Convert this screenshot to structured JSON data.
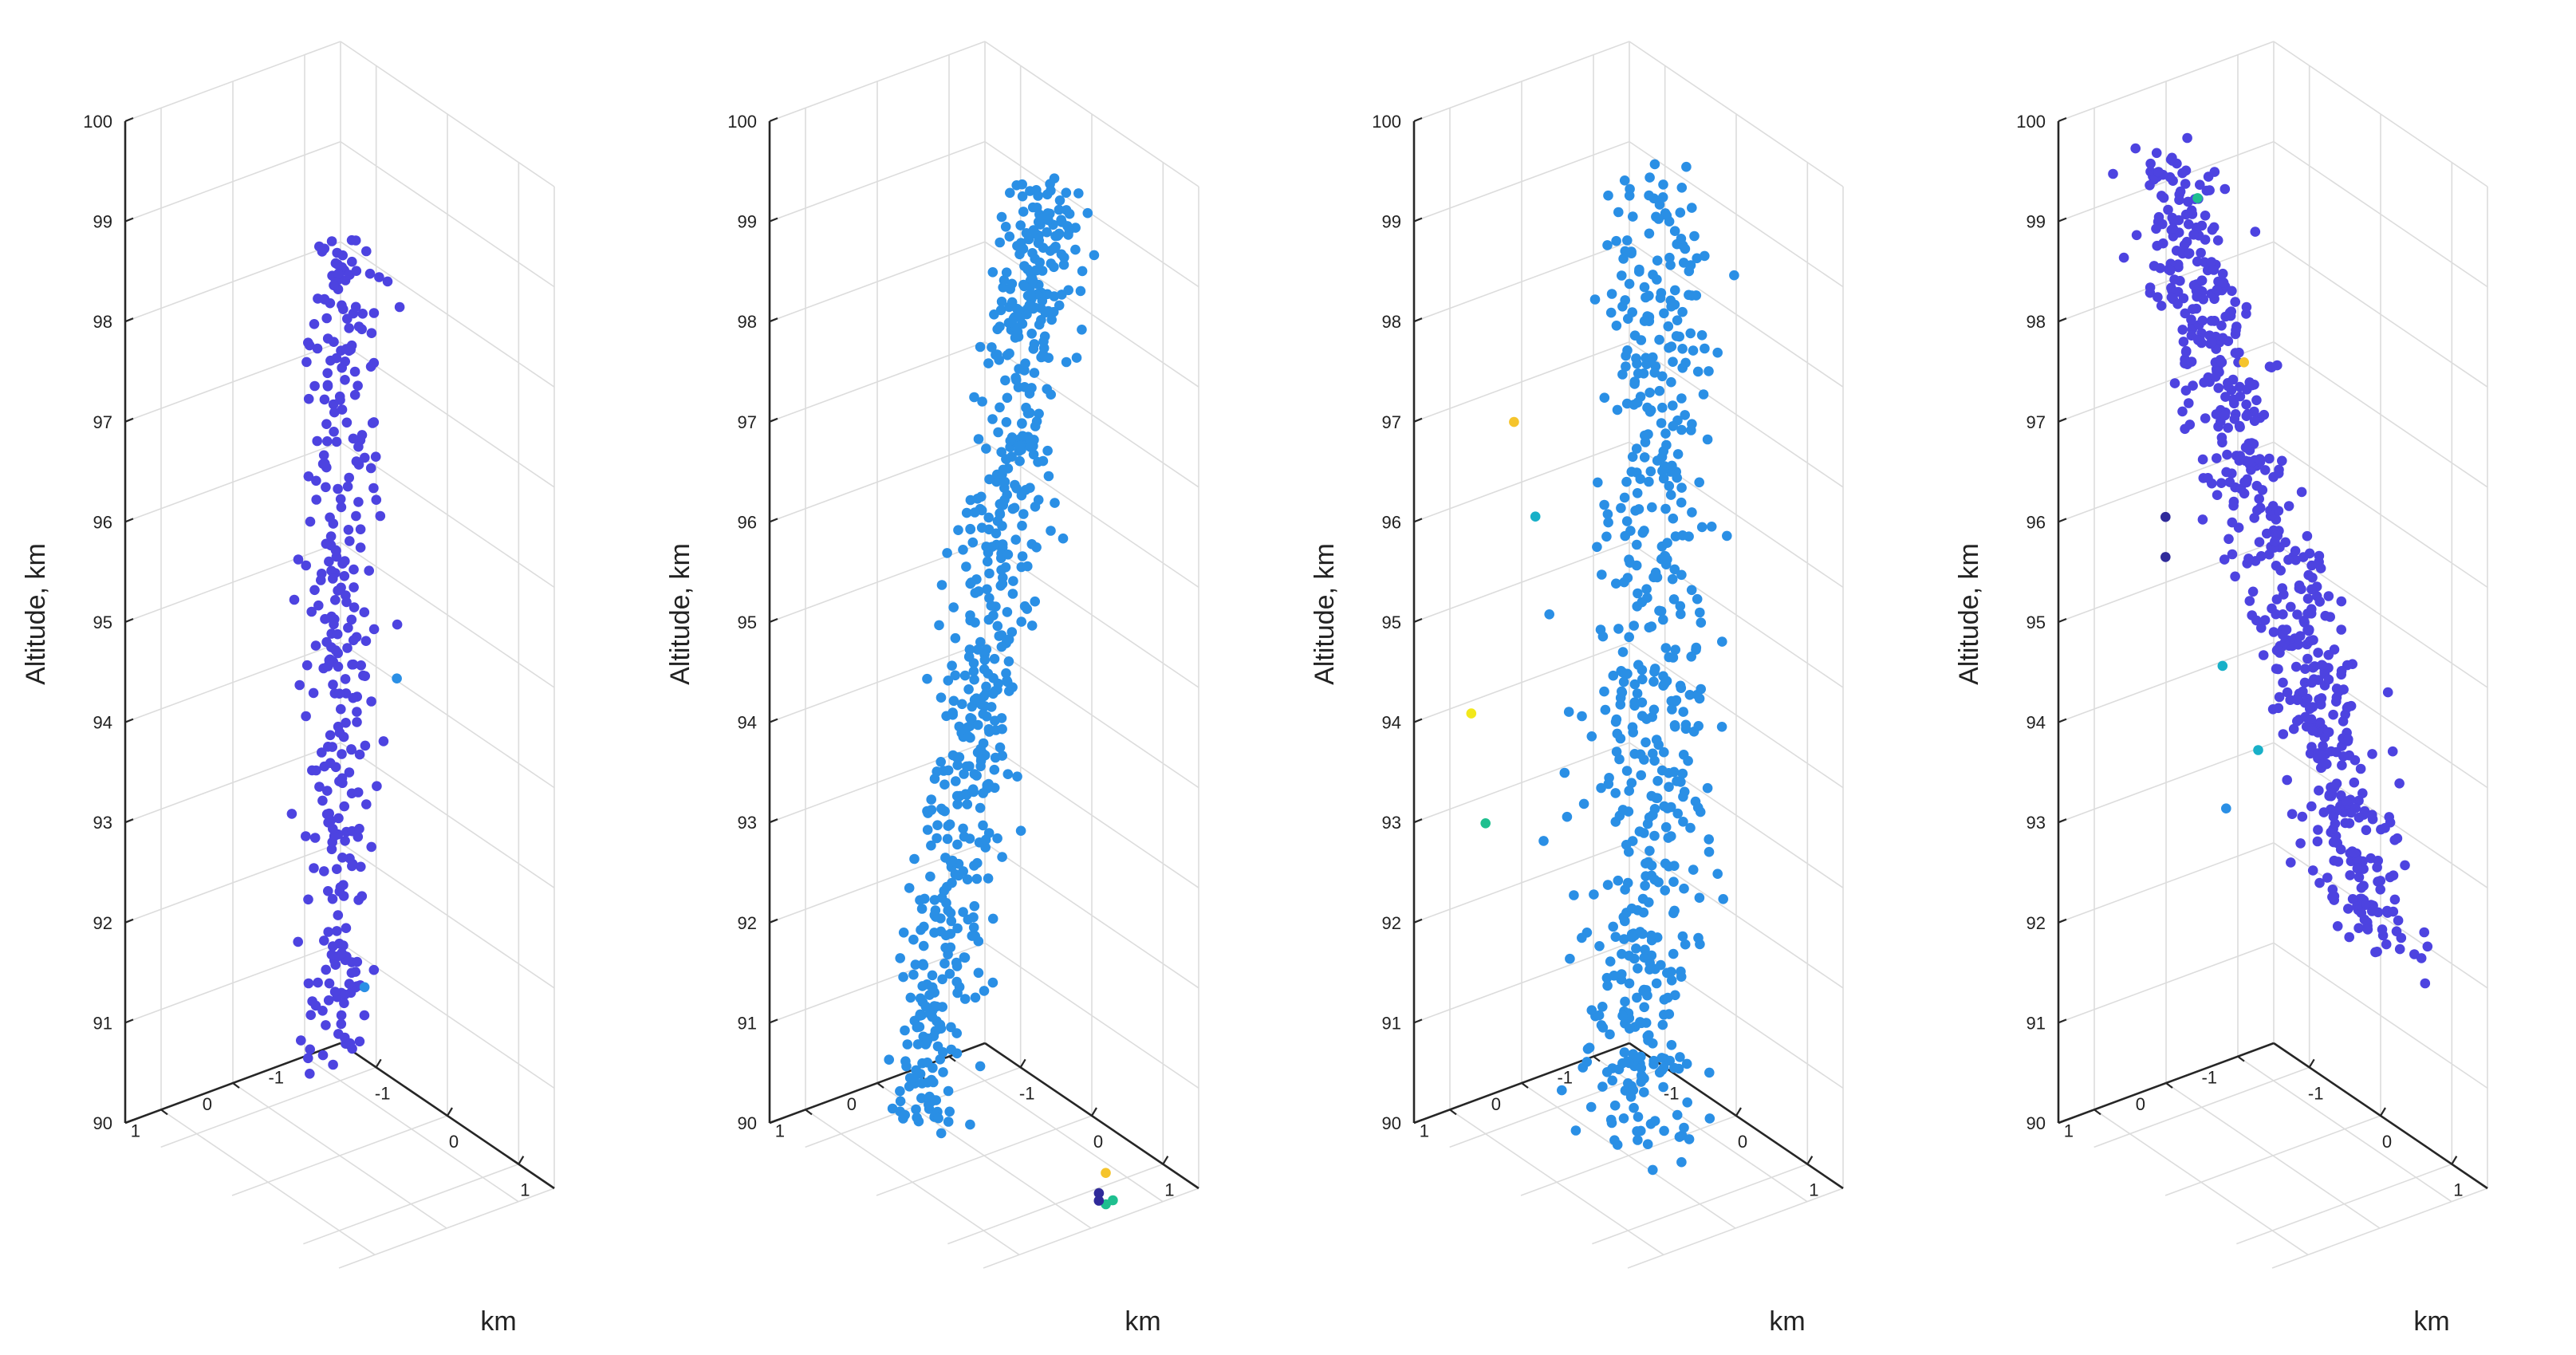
{
  "chart_data": [
    {
      "type": "scatter3d",
      "zlabel": "Altitude, km",
      "xlabel": "km",
      "zlim": [
        90,
        100
      ],
      "zticks": [
        90,
        91,
        92,
        93,
        94,
        95,
        96,
        97,
        98,
        99,
        100
      ],
      "ylim": [
        -1.5,
        1.5
      ],
      "yticks": [
        -1,
        0,
        1
      ],
      "xlim": [
        -1.5,
        1.5
      ],
      "xticks": [
        -1,
        0,
        1
      ],
      "grid": true,
      "series": [
        {
          "color": "#4d43e0",
          "cluster": {
            "center": [
              0.05,
              0.05
            ],
            "spread": [
              0.18,
              0.18
            ],
            "z_range": [
              90.9,
              99.3
            ],
            "drift": [
              0,
              0
            ],
            "count": 320
          }
        },
        {
          "color": "#2a8fe5",
          "points": [
            [
              0.55,
              0.2,
              92.0
            ],
            [
              0.6,
              -0.2,
              95.0
            ]
          ]
        }
      ]
    },
    {
      "type": "scatter3d",
      "zlabel": "Altitude, km",
      "xlabel": "km",
      "zlim": [
        90,
        100
      ],
      "zticks": [
        90,
        91,
        92,
        93,
        94,
        95,
        96,
        97,
        98,
        99,
        100
      ],
      "ylim": [
        -1.5,
        1.5
      ],
      "yticks": [
        -1,
        0,
        1
      ],
      "xlim": [
        -1.5,
        1.5
      ],
      "xticks": [
        -1,
        0,
        1
      ],
      "grid": true,
      "series": [
        {
          "color": "#2a8fe5",
          "cluster": {
            "center": [
              0.0,
              0.0
            ],
            "spread": [
              0.2,
              0.2
            ],
            "z_range": [
              90.0,
              100.0
            ],
            "drift": [
              1.4,
              -0.5
            ],
            "count": 620
          }
        },
        {
          "color": "#f5c42c",
          "points": [
            [
              0.7,
              -1.0,
              89.9
            ]
          ]
        },
        {
          "color": "#1fbf8f",
          "points": [
            [
              0.9,
              -0.9,
              89.75
            ],
            [
              0.65,
              -1.05,
              89.55
            ]
          ]
        },
        {
          "color": "#2f2a9a",
          "points": [
            [
              0.3,
              -1.3,
              89.35
            ],
            [
              0.2,
              -1.4,
              89.35
            ]
          ]
        }
      ]
    },
    {
      "type": "scatter3d",
      "zlabel": "Altitude, km",
      "xlabel": "km",
      "zlim": [
        90,
        100
      ],
      "zticks": [
        90,
        91,
        92,
        93,
        94,
        95,
        96,
        97,
        98,
        99,
        100
      ],
      "ylim": [
        -1.5,
        1.5
      ],
      "yticks": [
        -1,
        0,
        1
      ],
      "xlim": [
        -1.5,
        1.5
      ],
      "xticks": [
        -1,
        0,
        1
      ],
      "grid": true,
      "series": [
        {
          "color": "#2a8fe5",
          "cluster": {
            "center": [
              0.3,
              0.0
            ],
            "spread": [
              0.3,
              0.3
            ],
            "z_range": [
              90.3,
              100.0
            ],
            "drift": [
              0.3,
              0.0
            ],
            "count": 560
          }
        },
        {
          "color": "#f2e81b",
          "points": [
            [
              -1.2,
              1.0,
              94.1
            ]
          ]
        },
        {
          "color": "#f5c42c",
          "points": [
            [
              -0.6,
              1.0,
              97.3
            ]
          ]
        },
        {
          "color": "#1fbf8f",
          "points": [
            [
              -1.0,
              1.0,
              93.1
            ]
          ]
        },
        {
          "color": "#18b0c8",
          "points": [
            [
              -0.3,
              1.0,
              96.5
            ]
          ]
        }
      ]
    },
    {
      "type": "scatter3d",
      "zlabel": "Altitude, km",
      "xlabel": "km",
      "zlim": [
        90,
        100
      ],
      "zticks": [
        90,
        91,
        92,
        93,
        94,
        95,
        96,
        97,
        98,
        99,
        100
      ],
      "ylim": [
        -1.5,
        1.5
      ],
      "yticks": [
        -1,
        0,
        1
      ],
      "xlim": [
        -1.5,
        1.5
      ],
      "xticks": [
        -1,
        0,
        1
      ],
      "grid": true,
      "series": [
        {
          "color": "#4d43e0",
          "cluster": {
            "center": [
              0.0,
              0.0
            ],
            "spread": [
              0.25,
              0.25
            ],
            "z_range": [
              92.6,
              99.4
            ],
            "drift": [
              -2.6,
              0.5
            ],
            "count": 600
          }
        },
        {
          "color": "#1fbf8f",
          "points": [
            [
              -0.05,
              1.0,
              99.8
            ]
          ]
        },
        {
          "color": "#f5c42c",
          "points": [
            [
              0.5,
              0.9,
              98.4
            ]
          ]
        },
        {
          "color": "#2f2a9a",
          "points": [
            [
              -0.5,
              1.0,
              96.4
            ],
            [
              -0.5,
              1.0,
              96.0
            ]
          ]
        },
        {
          "color": "#18b0c8",
          "points": [
            [
              0.3,
              1.0,
              95.3
            ],
            [
              0.8,
              1.0,
              94.7
            ]
          ]
        },
        {
          "color": "#2a8fe5",
          "points": [
            [
              0.35,
              1.0,
              93.9
            ]
          ]
        }
      ]
    }
  ]
}
